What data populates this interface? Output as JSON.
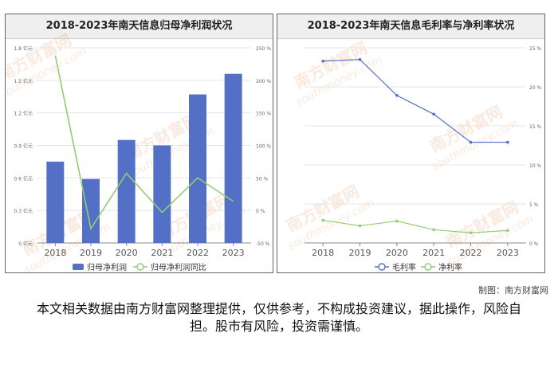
{
  "credit": "制图：南方财富网",
  "disclaimer": "本文相关数据由南方财富网整理提供，仅供参考，不构成投资建议，据此操作，风险自担。股市有风险，投资需谨慎。",
  "watermark": {
    "brand": "南方财富网",
    "site": "southmoney.com"
  },
  "colors": {
    "bar": "#5470c6",
    "line_green": "#91cc75",
    "line_blue": "#5470c6"
  },
  "chart_data": [
    {
      "type": "bar",
      "title": "2018-2023年南天信息归母净利润状况",
      "categories": [
        "2018",
        "2019",
        "2020",
        "2021",
        "2022",
        "2023"
      ],
      "series": [
        {
          "name": "归母净利润",
          "type": "bar",
          "axis": "left",
          "values": [
            0.75,
            0.59,
            0.95,
            0.9,
            1.37,
            1.56
          ]
        },
        {
          "name": "归母净利润同比",
          "type": "line",
          "axis": "right",
          "values": [
            238,
            -28,
            57,
            -3,
            50,
            14
          ]
        }
      ],
      "y_left": {
        "min": 0,
        "max": 1.8,
        "ticks": [
          "0 亿元",
          "0.3 亿元",
          "0.6 亿元",
          "0.9 亿元",
          "1.2 亿元",
          "1.5 亿元",
          "1.8 亿元"
        ]
      },
      "y_right": {
        "min": -50,
        "max": 250,
        "ticks": [
          "-50 %",
          "0 %",
          "50 %",
          "100 %",
          "150 %",
          "200 %",
          "250 %"
        ]
      },
      "grid": true,
      "legend": "bottom-center"
    },
    {
      "type": "line",
      "title": "2018-2023年南天信息毛利率与净利率状况",
      "categories": [
        "2018",
        "2019",
        "2020",
        "2021",
        "2022",
        "2023"
      ],
      "series": [
        {
          "name": "毛利率",
          "values": [
            23.3,
            23.5,
            18.9,
            16.5,
            12.9,
            12.9
          ]
        },
        {
          "name": "净利率",
          "values": [
            2.9,
            2.2,
            2.8,
            1.7,
            1.3,
            1.6
          ]
        }
      ],
      "y_right": {
        "min": 0,
        "max": 25,
        "ticks": [
          "0 %",
          "5 %",
          "10 %",
          "15 %",
          "20 %",
          "25 %"
        ]
      },
      "grid": true,
      "legend": "bottom-center"
    }
  ]
}
